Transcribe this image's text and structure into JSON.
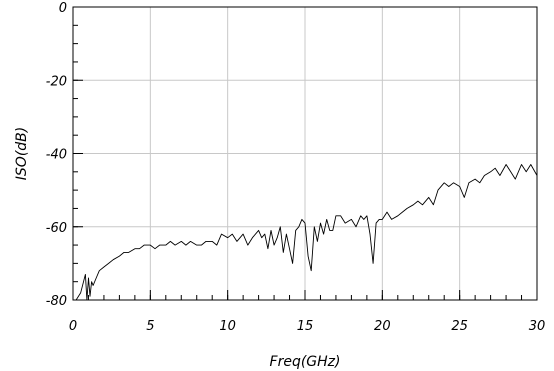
{
  "chart_data": {
    "type": "line",
    "title": "",
    "xlabel": "Freq(GHz)",
    "ylabel": "ISO(dB)",
    "xlim": [
      0,
      30
    ],
    "ylim": [
      -80,
      0
    ],
    "x_ticks": [
      0,
      5,
      10,
      15,
      20,
      25,
      30
    ],
    "y_ticks": [
      0,
      -20,
      -40,
      -60,
      -80
    ],
    "x_minor_step": 1,
    "y_minor_step": 5,
    "grid": true,
    "series": [
      {
        "x": [
          0.2,
          0.5,
          0.8,
          0.9,
          1.0,
          1.1,
          1.2,
          1.3,
          1.5,
          1.7,
          2.0,
          2.3,
          2.6,
          3.0,
          3.3,
          3.6,
          4.0,
          4.3,
          4.6,
          5.0,
          5.3,
          5.6,
          6.0,
          6.3,
          6.6,
          7.0,
          7.3,
          7.6,
          8.0,
          8.3,
          8.6,
          9.0,
          9.3,
          9.6,
          10.0,
          10.3,
          10.6,
          11.0,
          11.3,
          11.6,
          12.0,
          12.2,
          12.4,
          12.6,
          12.8,
          13.0,
          13.2,
          13.4,
          13.6,
          13.8,
          14.0,
          14.2,
          14.4,
          14.6,
          14.8,
          15.0,
          15.2,
          15.4,
          15.6,
          15.8,
          16.0,
          16.2,
          16.4,
          16.6,
          16.8,
          17.0,
          17.3,
          17.6,
          18.0,
          18.3,
          18.6,
          18.8,
          19.0,
          19.2,
          19.4,
          19.6,
          19.8,
          20.0,
          20.3,
          20.6,
          21.0,
          21.3,
          21.6,
          22.0,
          22.3,
          22.6,
          23.0,
          23.3,
          23.6,
          24.0,
          24.3,
          24.6,
          25.0,
          25.3,
          25.6,
          26.0,
          26.3,
          26.6,
          27.0,
          27.3,
          27.6,
          28.0,
          28.3,
          28.6,
          29.0,
          29.3,
          29.6,
          30.0
        ],
        "y": [
          -80,
          -78,
          -73,
          -80,
          -74,
          -79,
          -75,
          -76,
          -74,
          -72,
          -71,
          -70,
          -69,
          -68,
          -67,
          -67,
          -66,
          -66,
          -65,
          -65,
          -66,
          -65,
          -65,
          -64,
          -65,
          -64,
          -65,
          -64,
          -65,
          -65,
          -64,
          -64,
          -65,
          -62,
          -63,
          -62,
          -64,
          -62,
          -65,
          -63,
          -61,
          -63,
          -62,
          -66,
          -61,
          -65,
          -63,
          -60,
          -67,
          -62,
          -66,
          -70,
          -61,
          -60,
          -58,
          -59,
          -68,
          -72,
          -60,
          -64,
          -59,
          -62,
          -58,
          -61,
          -61,
          -57,
          -57,
          -59,
          -58,
          -60,
          -57,
          -58,
          -57,
          -62,
          -70,
          -59,
          -58,
          -58,
          -56,
          -58,
          -57,
          -56,
          -55,
          -54,
          -53,
          -54,
          -52,
          -54,
          -50,
          -48,
          -49,
          -48,
          -49,
          -52,
          -48,
          -47,
          -48,
          -46,
          -45,
          -44,
          -46,
          -43,
          -45,
          -47,
          -43,
          -45,
          -43,
          -46
        ]
      }
    ]
  }
}
